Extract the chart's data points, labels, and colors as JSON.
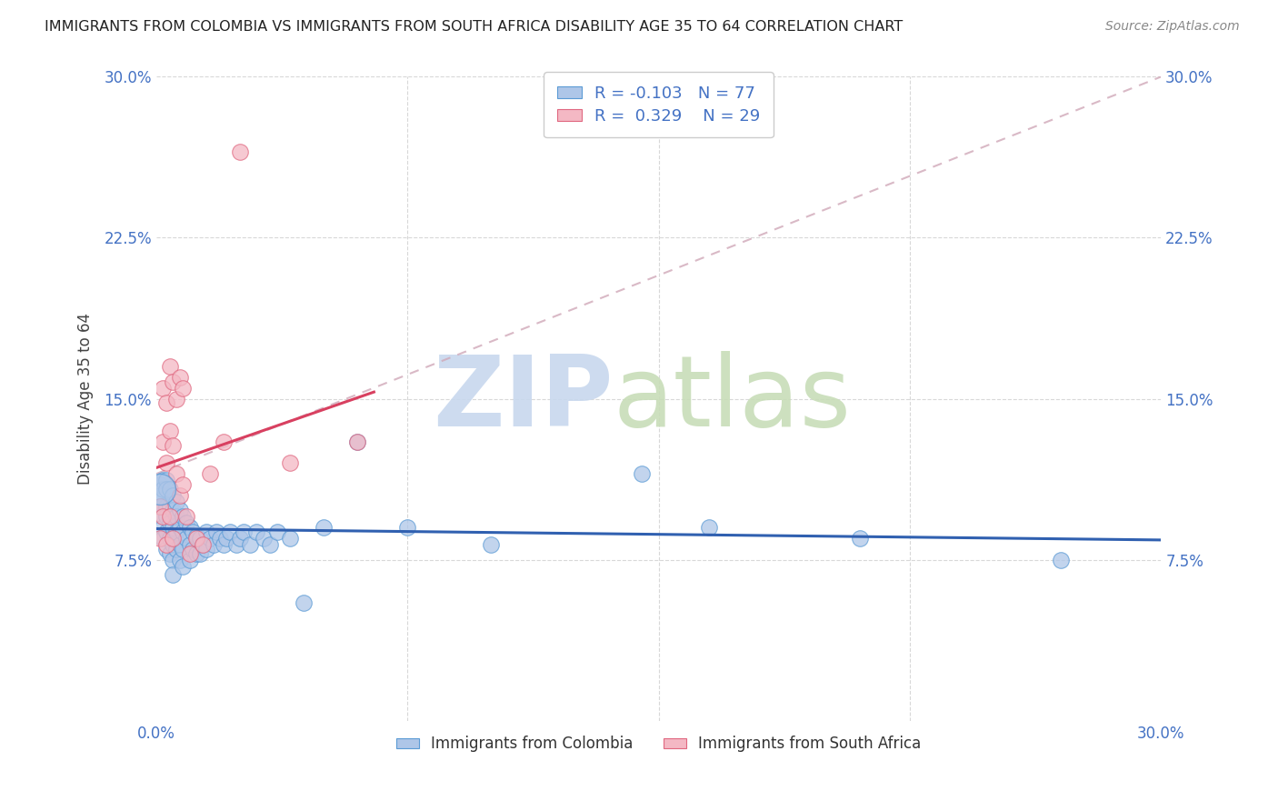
{
  "title": "IMMIGRANTS FROM COLOMBIA VS IMMIGRANTS FROM SOUTH AFRICA DISABILITY AGE 35 TO 64 CORRELATION CHART",
  "source": "Source: ZipAtlas.com",
  "ylabel": "Disability Age 35 to 64",
  "xlim": [
    0.0,
    0.3
  ],
  "ylim": [
    0.0,
    0.3
  ],
  "ytick_labels": [
    "7.5%",
    "15.0%",
    "22.5%",
    "30.0%"
  ],
  "ytick_values": [
    0.075,
    0.15,
    0.225,
    0.3
  ],
  "colombia_color": "#aec6e8",
  "colombia_edge": "#5b9bd5",
  "south_africa_color": "#f4b8c4",
  "south_africa_edge": "#e06880",
  "trend_colombia_color": "#3060b0",
  "trend_south_africa_color": "#d84060",
  "trend_dashed_color": "#d0a8b8",
  "R_colombia": -0.103,
  "N_colombia": 77,
  "R_south_africa": 0.329,
  "N_south_africa": 29,
  "colombia_x": [
    0.001,
    0.001,
    0.001,
    0.002,
    0.002,
    0.002,
    0.002,
    0.002,
    0.002,
    0.003,
    0.003,
    0.003,
    0.003,
    0.003,
    0.003,
    0.004,
    0.004,
    0.004,
    0.004,
    0.004,
    0.005,
    0.005,
    0.005,
    0.005,
    0.005,
    0.005,
    0.006,
    0.006,
    0.006,
    0.006,
    0.007,
    0.007,
    0.007,
    0.007,
    0.008,
    0.008,
    0.008,
    0.008,
    0.009,
    0.009,
    0.01,
    0.01,
    0.01,
    0.011,
    0.011,
    0.012,
    0.012,
    0.013,
    0.013,
    0.014,
    0.015,
    0.015,
    0.016,
    0.017,
    0.018,
    0.019,
    0.02,
    0.021,
    0.022,
    0.024,
    0.025,
    0.026,
    0.028,
    0.03,
    0.032,
    0.034,
    0.036,
    0.04,
    0.044,
    0.05,
    0.06,
    0.075,
    0.1,
    0.145,
    0.165,
    0.21,
    0.27
  ],
  "colombia_y": [
    0.11,
    0.105,
    0.1,
    0.112,
    0.108,
    0.1,
    0.095,
    0.09,
    0.085,
    0.112,
    0.108,
    0.1,
    0.095,
    0.088,
    0.08,
    0.108,
    0.1,
    0.092,
    0.085,
    0.078,
    0.105,
    0.098,
    0.09,
    0.082,
    0.075,
    0.068,
    0.102,
    0.095,
    0.088,
    0.08,
    0.098,
    0.09,
    0.082,
    0.075,
    0.095,
    0.088,
    0.08,
    0.072,
    0.092,
    0.085,
    0.09,
    0.082,
    0.075,
    0.088,
    0.08,
    0.086,
    0.078,
    0.085,
    0.078,
    0.082,
    0.088,
    0.08,
    0.085,
    0.082,
    0.088,
    0.085,
    0.082,
    0.085,
    0.088,
    0.082,
    0.085,
    0.088,
    0.082,
    0.088,
    0.085,
    0.082,
    0.088,
    0.085,
    0.055,
    0.09,
    0.13,
    0.09,
    0.082,
    0.115,
    0.09,
    0.085,
    0.075
  ],
  "south_africa_x": [
    0.001,
    0.001,
    0.002,
    0.002,
    0.002,
    0.003,
    0.003,
    0.003,
    0.004,
    0.004,
    0.004,
    0.005,
    0.005,
    0.005,
    0.006,
    0.006,
    0.007,
    0.007,
    0.008,
    0.008,
    0.009,
    0.01,
    0.012,
    0.014,
    0.016,
    0.02,
    0.025,
    0.04,
    0.06
  ],
  "south_africa_y": [
    0.1,
    0.085,
    0.155,
    0.13,
    0.095,
    0.148,
    0.12,
    0.082,
    0.165,
    0.135,
    0.095,
    0.158,
    0.128,
    0.085,
    0.15,
    0.115,
    0.16,
    0.105,
    0.155,
    0.11,
    0.095,
    0.078,
    0.085,
    0.082,
    0.115,
    0.13,
    0.265,
    0.12,
    0.13
  ],
  "legend_text_color": "#4472c4",
  "background_color": "#ffffff",
  "grid_color": "#d8d8d8",
  "watermark_zip_color": "#c8d8ee",
  "watermark_atlas_color": "#c8ddb8"
}
